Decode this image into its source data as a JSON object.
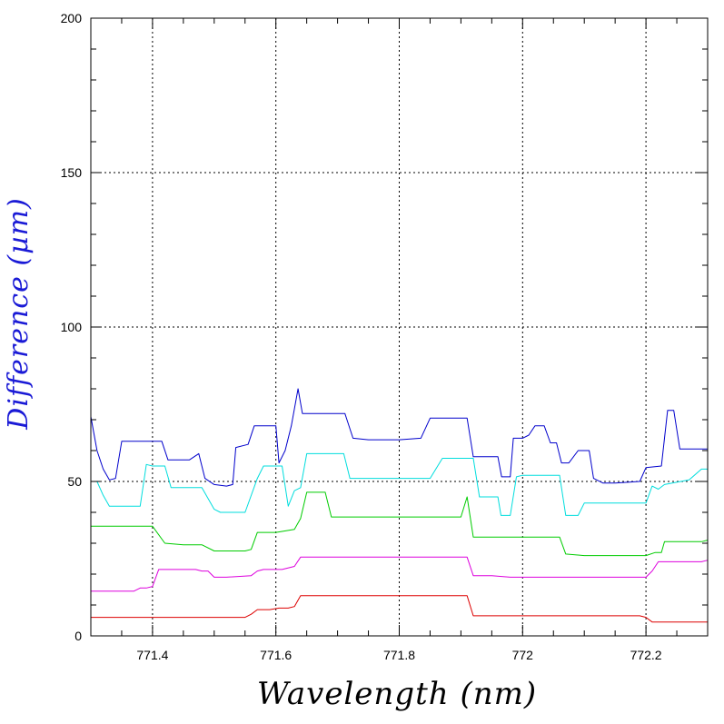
{
  "chart_data": {
    "type": "line",
    "xlabel": "Wavelength (nm)",
    "ylabel": "Difference (µm)",
    "xlim": [
      771.3,
      772.3
    ],
    "ylim": [
      0,
      200
    ],
    "x_ticks": [
      {
        "value": 771.4,
        "label": "771.4"
      },
      {
        "value": 771.6,
        "label": "771.6"
      },
      {
        "value": 771.8,
        "label": "771.8"
      },
      {
        "value": 772.0,
        "label": "772"
      },
      {
        "value": 772.2,
        "label": "772.2"
      }
    ],
    "y_ticks": [
      {
        "value": 0,
        "label": "0"
      },
      {
        "value": 50,
        "label": "50"
      },
      {
        "value": 100,
        "label": "100"
      },
      {
        "value": 150,
        "label": "150"
      },
      {
        "value": 200,
        "label": "200"
      }
    ],
    "x_minor_step": 0.05,
    "y_minor_step": 10,
    "grid": true,
    "grid_style": "dotted",
    "series": [
      {
        "color": "#0000cc",
        "points": [
          [
            771.3,
            71
          ],
          [
            771.31,
            60
          ],
          [
            771.32,
            54
          ],
          [
            771.33,
            50.5
          ],
          [
            771.34,
            51
          ],
          [
            771.35,
            63
          ],
          [
            771.37,
            63
          ],
          [
            771.4,
            63
          ],
          [
            771.415,
            63
          ],
          [
            771.425,
            57
          ],
          [
            771.46,
            57
          ],
          [
            771.475,
            59
          ],
          [
            771.485,
            51
          ],
          [
            771.5,
            49
          ],
          [
            771.52,
            48.5
          ],
          [
            771.53,
            49
          ],
          [
            771.535,
            61
          ],
          [
            771.555,
            62
          ],
          [
            771.565,
            68
          ],
          [
            771.6,
            68
          ],
          [
            771.605,
            56
          ],
          [
            771.615,
            60
          ],
          [
            771.625,
            68
          ],
          [
            771.636,
            80
          ],
          [
            771.643,
            72
          ],
          [
            771.7,
            72
          ],
          [
            771.712,
            72
          ],
          [
            771.725,
            64
          ],
          [
            771.75,
            63.5
          ],
          [
            771.8,
            63.5
          ],
          [
            771.835,
            64
          ],
          [
            771.85,
            70.5
          ],
          [
            771.9,
            70.5
          ],
          [
            771.91,
            70.5
          ],
          [
            771.92,
            58
          ],
          [
            771.96,
            58
          ],
          [
            771.966,
            51.5
          ],
          [
            771.98,
            51.5
          ],
          [
            771.985,
            64
          ],
          [
            772.0,
            64
          ],
          [
            772.01,
            65
          ],
          [
            772.02,
            68
          ],
          [
            772.035,
            68
          ],
          [
            772.045,
            62.5
          ],
          [
            772.055,
            62.5
          ],
          [
            772.063,
            56
          ],
          [
            772.075,
            56
          ],
          [
            772.09,
            60
          ],
          [
            772.108,
            60
          ],
          [
            772.115,
            51
          ],
          [
            772.13,
            49.5
          ],
          [
            772.15,
            49.5
          ],
          [
            772.19,
            50
          ],
          [
            772.2,
            54.5
          ],
          [
            772.225,
            55
          ],
          [
            772.235,
            73
          ],
          [
            772.245,
            73
          ],
          [
            772.255,
            60.5
          ],
          [
            772.3,
            60.5
          ]
        ]
      },
      {
        "color": "#00dddd",
        "points": [
          [
            771.3,
            50
          ],
          [
            771.31,
            50
          ],
          [
            771.32,
            45.5
          ],
          [
            771.33,
            42
          ],
          [
            771.37,
            42
          ],
          [
            771.38,
            42
          ],
          [
            771.39,
            55.5
          ],
          [
            771.4,
            55
          ],
          [
            771.42,
            55
          ],
          [
            771.43,
            48
          ],
          [
            771.48,
            48
          ],
          [
            771.5,
            41
          ],
          [
            771.51,
            40
          ],
          [
            771.52,
            40
          ],
          [
            771.55,
            40
          ],
          [
            771.57,
            51
          ],
          [
            771.58,
            55
          ],
          [
            771.6,
            55
          ],
          [
            771.61,
            55
          ],
          [
            771.62,
            42
          ],
          [
            771.63,
            47
          ],
          [
            771.64,
            48
          ],
          [
            771.65,
            59
          ],
          [
            771.7,
            59
          ],
          [
            771.71,
            59
          ],
          [
            771.72,
            51
          ],
          [
            771.8,
            51
          ],
          [
            771.85,
            51
          ],
          [
            771.87,
            57.5
          ],
          [
            771.9,
            57.5
          ],
          [
            771.92,
            57.5
          ],
          [
            771.93,
            45
          ],
          [
            771.96,
            45
          ],
          [
            771.965,
            39
          ],
          [
            771.98,
            39
          ],
          [
            771.99,
            51.5
          ],
          [
            772.0,
            52
          ],
          [
            772.06,
            52
          ],
          [
            772.07,
            39
          ],
          [
            772.09,
            39
          ],
          [
            772.1,
            43
          ],
          [
            772.18,
            43
          ],
          [
            772.2,
            43
          ],
          [
            772.21,
            48.5
          ],
          [
            772.22,
            47.5
          ],
          [
            772.23,
            49
          ],
          [
            772.27,
            50.5
          ],
          [
            772.29,
            54
          ],
          [
            772.3,
            54
          ]
        ]
      },
      {
        "color": "#00cc00",
        "points": [
          [
            771.3,
            35.5
          ],
          [
            771.4,
            35.5
          ],
          [
            771.42,
            30
          ],
          [
            771.45,
            29.5
          ],
          [
            771.48,
            29.5
          ],
          [
            771.5,
            27.5
          ],
          [
            771.55,
            27.5
          ],
          [
            771.56,
            28
          ],
          [
            771.57,
            33.5
          ],
          [
            771.6,
            33.5
          ],
          [
            771.63,
            34.5
          ],
          [
            771.64,
            38
          ],
          [
            771.65,
            46.5
          ],
          [
            771.68,
            46.5
          ],
          [
            771.69,
            38.5
          ],
          [
            771.8,
            38.5
          ],
          [
            771.9,
            38.5
          ],
          [
            771.91,
            45
          ],
          [
            771.92,
            32
          ],
          [
            772.0,
            32
          ],
          [
            772.06,
            32
          ],
          [
            772.07,
            26.5
          ],
          [
            772.1,
            26
          ],
          [
            772.2,
            26
          ],
          [
            772.215,
            27
          ],
          [
            772.225,
            27
          ],
          [
            772.23,
            30.5
          ],
          [
            772.29,
            30.5
          ],
          [
            772.3,
            31
          ]
        ]
      },
      {
        "color": "#dd00dd",
        "points": [
          [
            771.3,
            14.5
          ],
          [
            771.35,
            14.5
          ],
          [
            771.37,
            14.5
          ],
          [
            771.38,
            15.5
          ],
          [
            771.39,
            15.5
          ],
          [
            771.4,
            16
          ],
          [
            771.41,
            21.5
          ],
          [
            771.47,
            21.5
          ],
          [
            771.48,
            21
          ],
          [
            771.49,
            21
          ],
          [
            771.5,
            19
          ],
          [
            771.52,
            19
          ],
          [
            771.56,
            19.5
          ],
          [
            771.57,
            21
          ],
          [
            771.58,
            21.5
          ],
          [
            771.61,
            21.5
          ],
          [
            771.63,
            22.5
          ],
          [
            771.64,
            25.5
          ],
          [
            771.7,
            25.5
          ],
          [
            771.8,
            25.5
          ],
          [
            771.91,
            25.5
          ],
          [
            771.92,
            19.5
          ],
          [
            771.95,
            19.5
          ],
          [
            771.98,
            19
          ],
          [
            772.0,
            19
          ],
          [
            772.2,
            19
          ],
          [
            772.21,
            21
          ],
          [
            772.22,
            24
          ],
          [
            772.29,
            24
          ],
          [
            772.3,
            24.5
          ]
        ]
      },
      {
        "color": "#dd0000",
        "points": [
          [
            771.3,
            6
          ],
          [
            771.4,
            6
          ],
          [
            771.5,
            6
          ],
          [
            771.55,
            6
          ],
          [
            771.56,
            7
          ],
          [
            771.57,
            8.5
          ],
          [
            771.59,
            8.5
          ],
          [
            771.605,
            9
          ],
          [
            771.62,
            9
          ],
          [
            771.63,
            9.5
          ],
          [
            771.64,
            13
          ],
          [
            771.7,
            13
          ],
          [
            771.8,
            13
          ],
          [
            771.91,
            13
          ],
          [
            771.92,
            6.5
          ],
          [
            771.95,
            6.5
          ],
          [
            772.0,
            6.5
          ],
          [
            772.1,
            6.5
          ],
          [
            772.19,
            6.5
          ],
          [
            772.2,
            6
          ],
          [
            772.21,
            4.5
          ],
          [
            772.3,
            4.5
          ]
        ]
      }
    ]
  }
}
